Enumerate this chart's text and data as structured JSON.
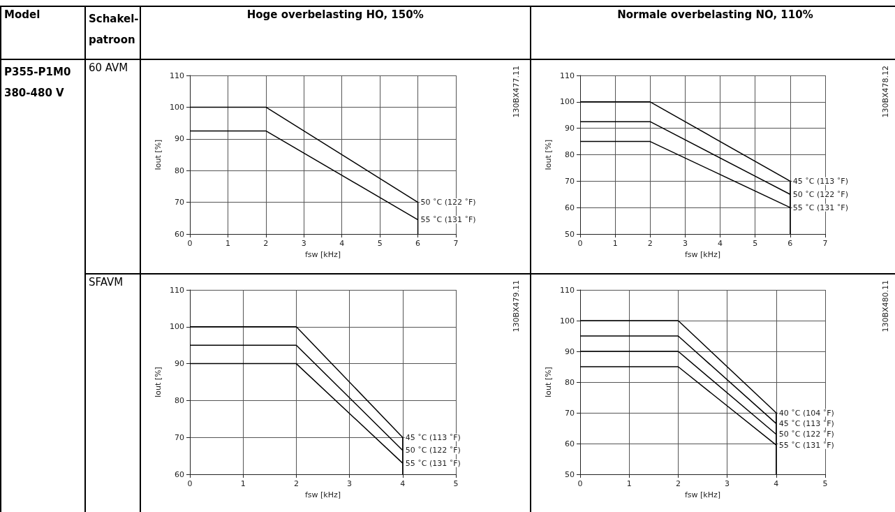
{
  "chart_data": [
    {
      "type": "other",
      "annotations": [
        "Model",
        "Schakel-patroon",
        "Hoge overbelasting HO, 150%",
        "Normale overbelasting NO, 110%",
        "P355-P1M0",
        "380-480 V",
        "60 AVM",
        "SFAVM"
      ]
    },
    {
      "type": "line",
      "xlabel": "fsw [kHz]",
      "ylabel": "Iout [%]",
      "annotations": [
        "130BX477.11"
      ],
      "xlim": [
        0,
        7
      ],
      "xticks": [
        0,
        1,
        2,
        3,
        4,
        5,
        6,
        7
      ],
      "ylim": [
        60,
        110
      ],
      "yticks": [
        60,
        70,
        80,
        90,
        100,
        110
      ],
      "grid": true,
      "series": [
        {
          "name": "50 ˚C (122 ˚F)",
          "color": "#000000",
          "x": [
            0,
            2,
            6,
            6
          ],
          "values": [
            100,
            100,
            70,
            60
          ]
        },
        {
          "name": "55 ˚C (131 ˚F)",
          "color": "#000000",
          "x": [
            0,
            2,
            6
          ],
          "values": [
            92.5,
            92.5,
            64.5
          ]
        }
      ]
    },
    {
      "type": "line",
      "xlabel": "fsw [kHz]",
      "ylabel": "Iout [%]",
      "annotations": [
        "130BX478.12"
      ],
      "xlim": [
        0,
        7
      ],
      "xticks": [
        0,
        1,
        2,
        3,
        4,
        5,
        6,
        7
      ],
      "ylim": [
        50,
        110
      ],
      "yticks": [
        50,
        60,
        70,
        80,
        90,
        100,
        110
      ],
      "grid": true,
      "series": [
        {
          "name": "45 ˚C (113 ˚F)",
          "color": "#000000",
          "x": [
            0,
            2,
            6,
            6
          ],
          "values": [
            100,
            100,
            70,
            50
          ]
        },
        {
          "name": "50 ˚C (122 ˚F)",
          "color": "#000000",
          "x": [
            0,
            2,
            6
          ],
          "values": [
            92.5,
            92.5,
            65
          ]
        },
        {
          "name": "55 ˚C (131 ˚F)",
          "color": "#000000",
          "x": [
            0,
            2,
            6
          ],
          "values": [
            85,
            85,
            60
          ]
        }
      ]
    },
    {
      "type": "line",
      "xlabel": "fsw [kHz]",
      "ylabel": "Iout [%]",
      "annotations": [
        "130BX479.11"
      ],
      "xlim": [
        0,
        5
      ],
      "xticks": [
        0,
        1,
        2,
        3,
        4,
        5
      ],
      "ylim": [
        60,
        110
      ],
      "yticks": [
        60,
        70,
        80,
        90,
        100,
        110
      ],
      "grid": true,
      "series": [
        {
          "name": "45 ˚C (113 ˚F)",
          "color": "#000000",
          "x": [
            0,
            2,
            4,
            4
          ],
          "values": [
            100,
            100,
            70,
            60
          ]
        },
        {
          "name": "50 ˚C (122 ˚F)",
          "color": "#000000",
          "x": [
            0,
            2,
            4
          ],
          "values": [
            95,
            95,
            66.5
          ]
        },
        {
          "name": "55 ˚C (131 ˚F)",
          "color": "#000000",
          "x": [
            0,
            2,
            4
          ],
          "values": [
            90,
            90,
            63
          ]
        }
      ]
    },
    {
      "type": "line",
      "xlabel": "fsw [kHz]",
      "ylabel": "Iout [%]",
      "annotations": [
        "130BX480.11"
      ],
      "xlim": [
        0,
        5
      ],
      "xticks": [
        0,
        1,
        2,
        3,
        4,
        5
      ],
      "ylim": [
        50,
        110
      ],
      "yticks": [
        50,
        60,
        70,
        80,
        90,
        100,
        110
      ],
      "grid": true,
      "series": [
        {
          "name": "40 ˚C (104 ˚F)",
          "color": "#000000",
          "x": [
            0,
            2,
            4,
            4
          ],
          "values": [
            100,
            100,
            70,
            50
          ]
        },
        {
          "name": "45 ˚C (113 ˚F)",
          "color": "#000000",
          "x": [
            0,
            2,
            4
          ],
          "values": [
            95,
            95,
            66.5
          ]
        },
        {
          "name": "50 ˚C (122 ˚F)",
          "color": "#000000",
          "x": [
            0,
            2,
            4
          ],
          "values": [
            90,
            90,
            63
          ]
        },
        {
          "name": "55 ˚C (131 ˚F)",
          "color": "#000000",
          "x": [
            0,
            2,
            4
          ],
          "values": [
            85,
            85,
            59.5
          ]
        }
      ]
    }
  ]
}
